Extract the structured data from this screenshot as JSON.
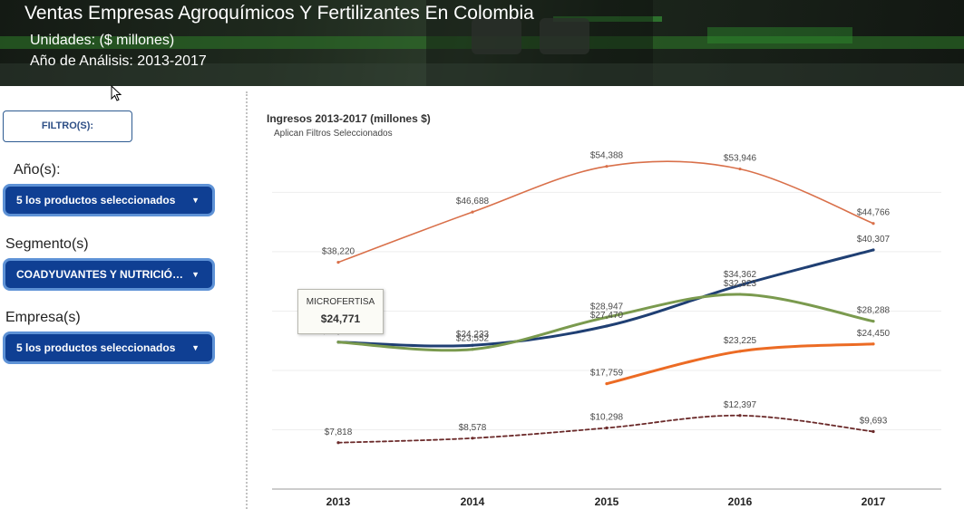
{
  "header": {
    "title": "Ventas Empresas Agroquímicos Y Fertilizantes En Colombia",
    "units": "Unidades: ($ millones)",
    "years": "Año de Análisis: 2013-2017"
  },
  "sidebar": {
    "filter_button": "FILTRO(S):",
    "year_label": "Año(s):",
    "year_value": "5 los productos seleccionados",
    "segment_label": "Segmento(s)",
    "segment_value": "COADYUVANTES Y NUTRICIÓN ...",
    "company_label": "Empresa(s)",
    "company_value": "5 los productos seleccionados"
  },
  "tooltip": {
    "name": "MICROFERTISA",
    "value": "$24,771"
  },
  "chart_data": {
    "type": "line",
    "title": "Ingresos 2013-2017 (millones $)",
    "subtitle": "Aplican Filtros Seleccionados",
    "categories": [
      "2013",
      "2014",
      "2015",
      "2016",
      "2017"
    ],
    "ylim": [
      0,
      58000
    ],
    "grid": true,
    "series": [
      {
        "color": "#d9704a",
        "width": 1.6,
        "dash": "",
        "values": [
          38220,
          46688,
          54388,
          53946,
          44766
        ],
        "labels": [
          "$38,220",
          "$46,688",
          "$54,388",
          "$53,946",
          "$44,766"
        ]
      },
      {
        "color": "#1f3f73",
        "width": 3,
        "dash": "",
        "values": [
          24771,
          24233,
          27470,
          34362,
          40307
        ],
        "labels": [
          "$24,771",
          "$24,233",
          "$27,470",
          "$34,362",
          "$40,307"
        ]
      },
      {
        "color": "#7a9a4e",
        "width": 3,
        "dash": "",
        "values": [
          24771,
          23552,
          28947,
          32823,
          28288
        ],
        "labels": [
          "",
          "$23,552",
          "$28,947",
          "$32,823",
          "$28,288"
        ]
      },
      {
        "color": "#ec6b24",
        "width": 3,
        "dash": "",
        "values": [
          null,
          null,
          17759,
          23225,
          24450
        ],
        "labels": [
          "",
          "",
          "$17,759",
          "$23,225",
          "$24,450"
        ]
      },
      {
        "color": "#6b2a2a",
        "width": 1.8,
        "dash": "4,3",
        "values": [
          7818,
          8578,
          10298,
          12397,
          9693
        ],
        "labels": [
          "$7,818",
          "$8,578",
          "$10,298",
          "$12,397",
          "$9,693"
        ]
      }
    ]
  }
}
